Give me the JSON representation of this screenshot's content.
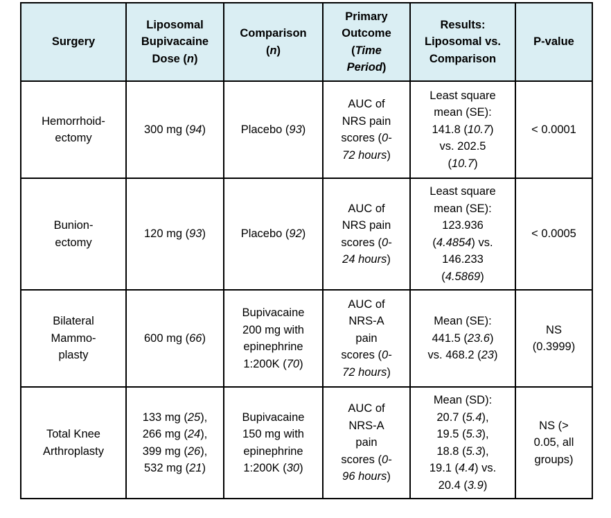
{
  "header": [
    [
      [
        [
          "Surgery",
          0
        ]
      ]
    ],
    [
      [
        [
          "Liposomal",
          0
        ]
      ],
      [
        [
          "Bupivacaine",
          0
        ]
      ],
      [
        [
          "Dose (",
          0
        ],
        [
          "n",
          1
        ],
        [
          ")",
          0
        ]
      ]
    ],
    [
      [
        [
          "Comparison",
          0
        ]
      ],
      [
        [
          "(",
          0
        ],
        [
          "n",
          1
        ],
        [
          ")",
          0
        ]
      ]
    ],
    [
      [
        [
          "Primary",
          0
        ]
      ],
      [
        [
          "Outcome",
          0
        ]
      ],
      [
        [
          "(",
          0
        ],
        [
          "Time",
          1
        ]
      ],
      [
        [
          "Period",
          1
        ],
        [
          ")",
          0
        ]
      ]
    ],
    [
      [
        [
          "Results:",
          0
        ]
      ],
      [
        [
          "Liposomal vs.",
          0
        ]
      ],
      [
        [
          "Comparison",
          0
        ]
      ]
    ],
    [
      [
        [
          "P-value",
          0
        ]
      ]
    ]
  ],
  "rows": [
    [
      [
        [
          [
            "Hemorrhoid-",
            0
          ]
        ],
        [
          [
            "ectomy",
            0
          ]
        ]
      ],
      [
        [
          [
            "300 mg (",
            0
          ],
          [
            "94",
            1
          ],
          [
            ")",
            0
          ]
        ]
      ],
      [
        [
          [
            "Placebo (",
            0
          ],
          [
            "93",
            1
          ],
          [
            ")",
            0
          ]
        ]
      ],
      [
        [
          [
            "AUC of",
            0
          ]
        ],
        [
          [
            "NRS pain",
            0
          ]
        ],
        [
          [
            "scores (",
            0
          ],
          [
            "0-",
            1
          ]
        ],
        [
          [
            "72 hours",
            1
          ],
          [
            ")",
            0
          ]
        ]
      ],
      [
        [
          [
            "Least square",
            0
          ]
        ],
        [
          [
            "mean (SE):",
            0
          ]
        ],
        [
          [
            "141.8 (",
            0
          ],
          [
            "10.7",
            1
          ],
          [
            ")",
            0
          ]
        ],
        [
          [
            "vs. 202.5",
            0
          ]
        ],
        [
          [
            "(",
            0
          ],
          [
            "10.7",
            1
          ],
          [
            ")",
            0
          ]
        ]
      ],
      [
        [
          [
            "< 0.0001",
            0
          ]
        ]
      ]
    ],
    [
      [
        [
          [
            "Bunion-",
            0
          ]
        ],
        [
          [
            "ectomy",
            0
          ]
        ]
      ],
      [
        [
          [
            "120 mg (",
            0
          ],
          [
            "93",
            1
          ],
          [
            ")",
            0
          ]
        ]
      ],
      [
        [
          [
            "Placebo (",
            0
          ],
          [
            "92",
            1
          ],
          [
            ")",
            0
          ]
        ]
      ],
      [
        [
          [
            "AUC of",
            0
          ]
        ],
        [
          [
            "NRS pain",
            0
          ]
        ],
        [
          [
            "scores (",
            0
          ],
          [
            "0-",
            1
          ]
        ],
        [
          [
            "24 hours",
            1
          ],
          [
            ")",
            0
          ]
        ]
      ],
      [
        [
          [
            "Least square",
            0
          ]
        ],
        [
          [
            "mean (SE):",
            0
          ]
        ],
        [
          [
            "123.936",
            0
          ]
        ],
        [
          [
            "(",
            0
          ],
          [
            "4.4854",
            1
          ],
          [
            ") vs.",
            0
          ]
        ],
        [
          [
            "146.233",
            0
          ]
        ],
        [
          [
            "(",
            0
          ],
          [
            "4.5869",
            1
          ],
          [
            ")",
            0
          ]
        ]
      ],
      [
        [
          [
            "< 0.0005",
            0
          ]
        ]
      ]
    ],
    [
      [
        [
          [
            "Bilateral",
            0
          ]
        ],
        [
          [
            "Mammo-",
            0
          ]
        ],
        [
          [
            "plasty",
            0
          ]
        ]
      ],
      [
        [
          [
            "600 mg (",
            0
          ],
          [
            "66",
            1
          ],
          [
            ")",
            0
          ]
        ]
      ],
      [
        [
          [
            "Bupivacaine",
            0
          ]
        ],
        [
          [
            "200 mg with",
            0
          ]
        ],
        [
          [
            "epinephrine",
            0
          ]
        ],
        [
          [
            "1:200K (",
            0
          ],
          [
            "70",
            1
          ],
          [
            ")",
            0
          ]
        ]
      ],
      [
        [
          [
            "AUC of",
            0
          ]
        ],
        [
          [
            "NRS-A",
            0
          ]
        ],
        [
          [
            "pain",
            0
          ]
        ],
        [
          [
            "scores (",
            0
          ],
          [
            "0-",
            1
          ]
        ],
        [
          [
            "72 hours",
            1
          ],
          [
            ")",
            0
          ]
        ]
      ],
      [
        [
          [
            "Mean (SE):",
            0
          ]
        ],
        [
          [
            "441.5 (",
            0
          ],
          [
            "23.6",
            1
          ],
          [
            ")",
            0
          ]
        ],
        [
          [
            "vs. 468.2 (",
            0
          ],
          [
            "23",
            1
          ],
          [
            ")",
            0
          ]
        ]
      ],
      [
        [
          [
            "NS",
            0
          ]
        ],
        [
          [
            "(0.3999)",
            0
          ]
        ]
      ]
    ],
    [
      [
        [
          [
            "Total Knee",
            0
          ]
        ],
        [
          [
            "Arthroplasty",
            0
          ]
        ]
      ],
      [
        [
          [
            "133 mg (",
            0
          ],
          [
            "25",
            1
          ],
          [
            "),",
            0
          ]
        ],
        [
          [
            "266 mg (",
            0
          ],
          [
            "24",
            1
          ],
          [
            "),",
            0
          ]
        ],
        [
          [
            "399 mg (",
            0
          ],
          [
            "26",
            1
          ],
          [
            "),",
            0
          ]
        ],
        [
          [
            "532 mg (",
            0
          ],
          [
            "21",
            1
          ],
          [
            ")",
            0
          ]
        ]
      ],
      [
        [
          [
            "Bupivacaine",
            0
          ]
        ],
        [
          [
            "150 mg with",
            0
          ]
        ],
        [
          [
            "epinephrine",
            0
          ]
        ],
        [
          [
            "1:200K (",
            0
          ],
          [
            "30",
            1
          ],
          [
            ")",
            0
          ]
        ]
      ],
      [
        [
          [
            "AUC of",
            0
          ]
        ],
        [
          [
            "NRS-A",
            0
          ]
        ],
        [
          [
            "pain",
            0
          ]
        ],
        [
          [
            "scores (",
            0
          ],
          [
            "0-",
            1
          ]
        ],
        [
          [
            "96 hours",
            1
          ],
          [
            ")",
            0
          ]
        ]
      ],
      [
        [
          [
            "Mean (SD):",
            0
          ]
        ],
        [
          [
            "20.7 (",
            0
          ],
          [
            "5.4",
            1
          ],
          [
            "),",
            0
          ]
        ],
        [
          [
            "19.5 (",
            0
          ],
          [
            "5.3",
            1
          ],
          [
            "),",
            0
          ]
        ],
        [
          [
            "18.8 (",
            0
          ],
          [
            "5.3",
            1
          ],
          [
            "),",
            0
          ]
        ],
        [
          [
            "19.1 (",
            0
          ],
          [
            "4.4",
            1
          ],
          [
            ") vs.",
            0
          ]
        ],
        [
          [
            "20.4 (",
            0
          ],
          [
            "3.9",
            1
          ],
          [
            ")",
            0
          ]
        ]
      ],
      [
        [
          [
            "NS (>",
            0
          ]
        ],
        [
          [
            "0.05, all",
            0
          ]
        ],
        [
          [
            "groups)",
            0
          ]
        ]
      ]
    ]
  ]
}
